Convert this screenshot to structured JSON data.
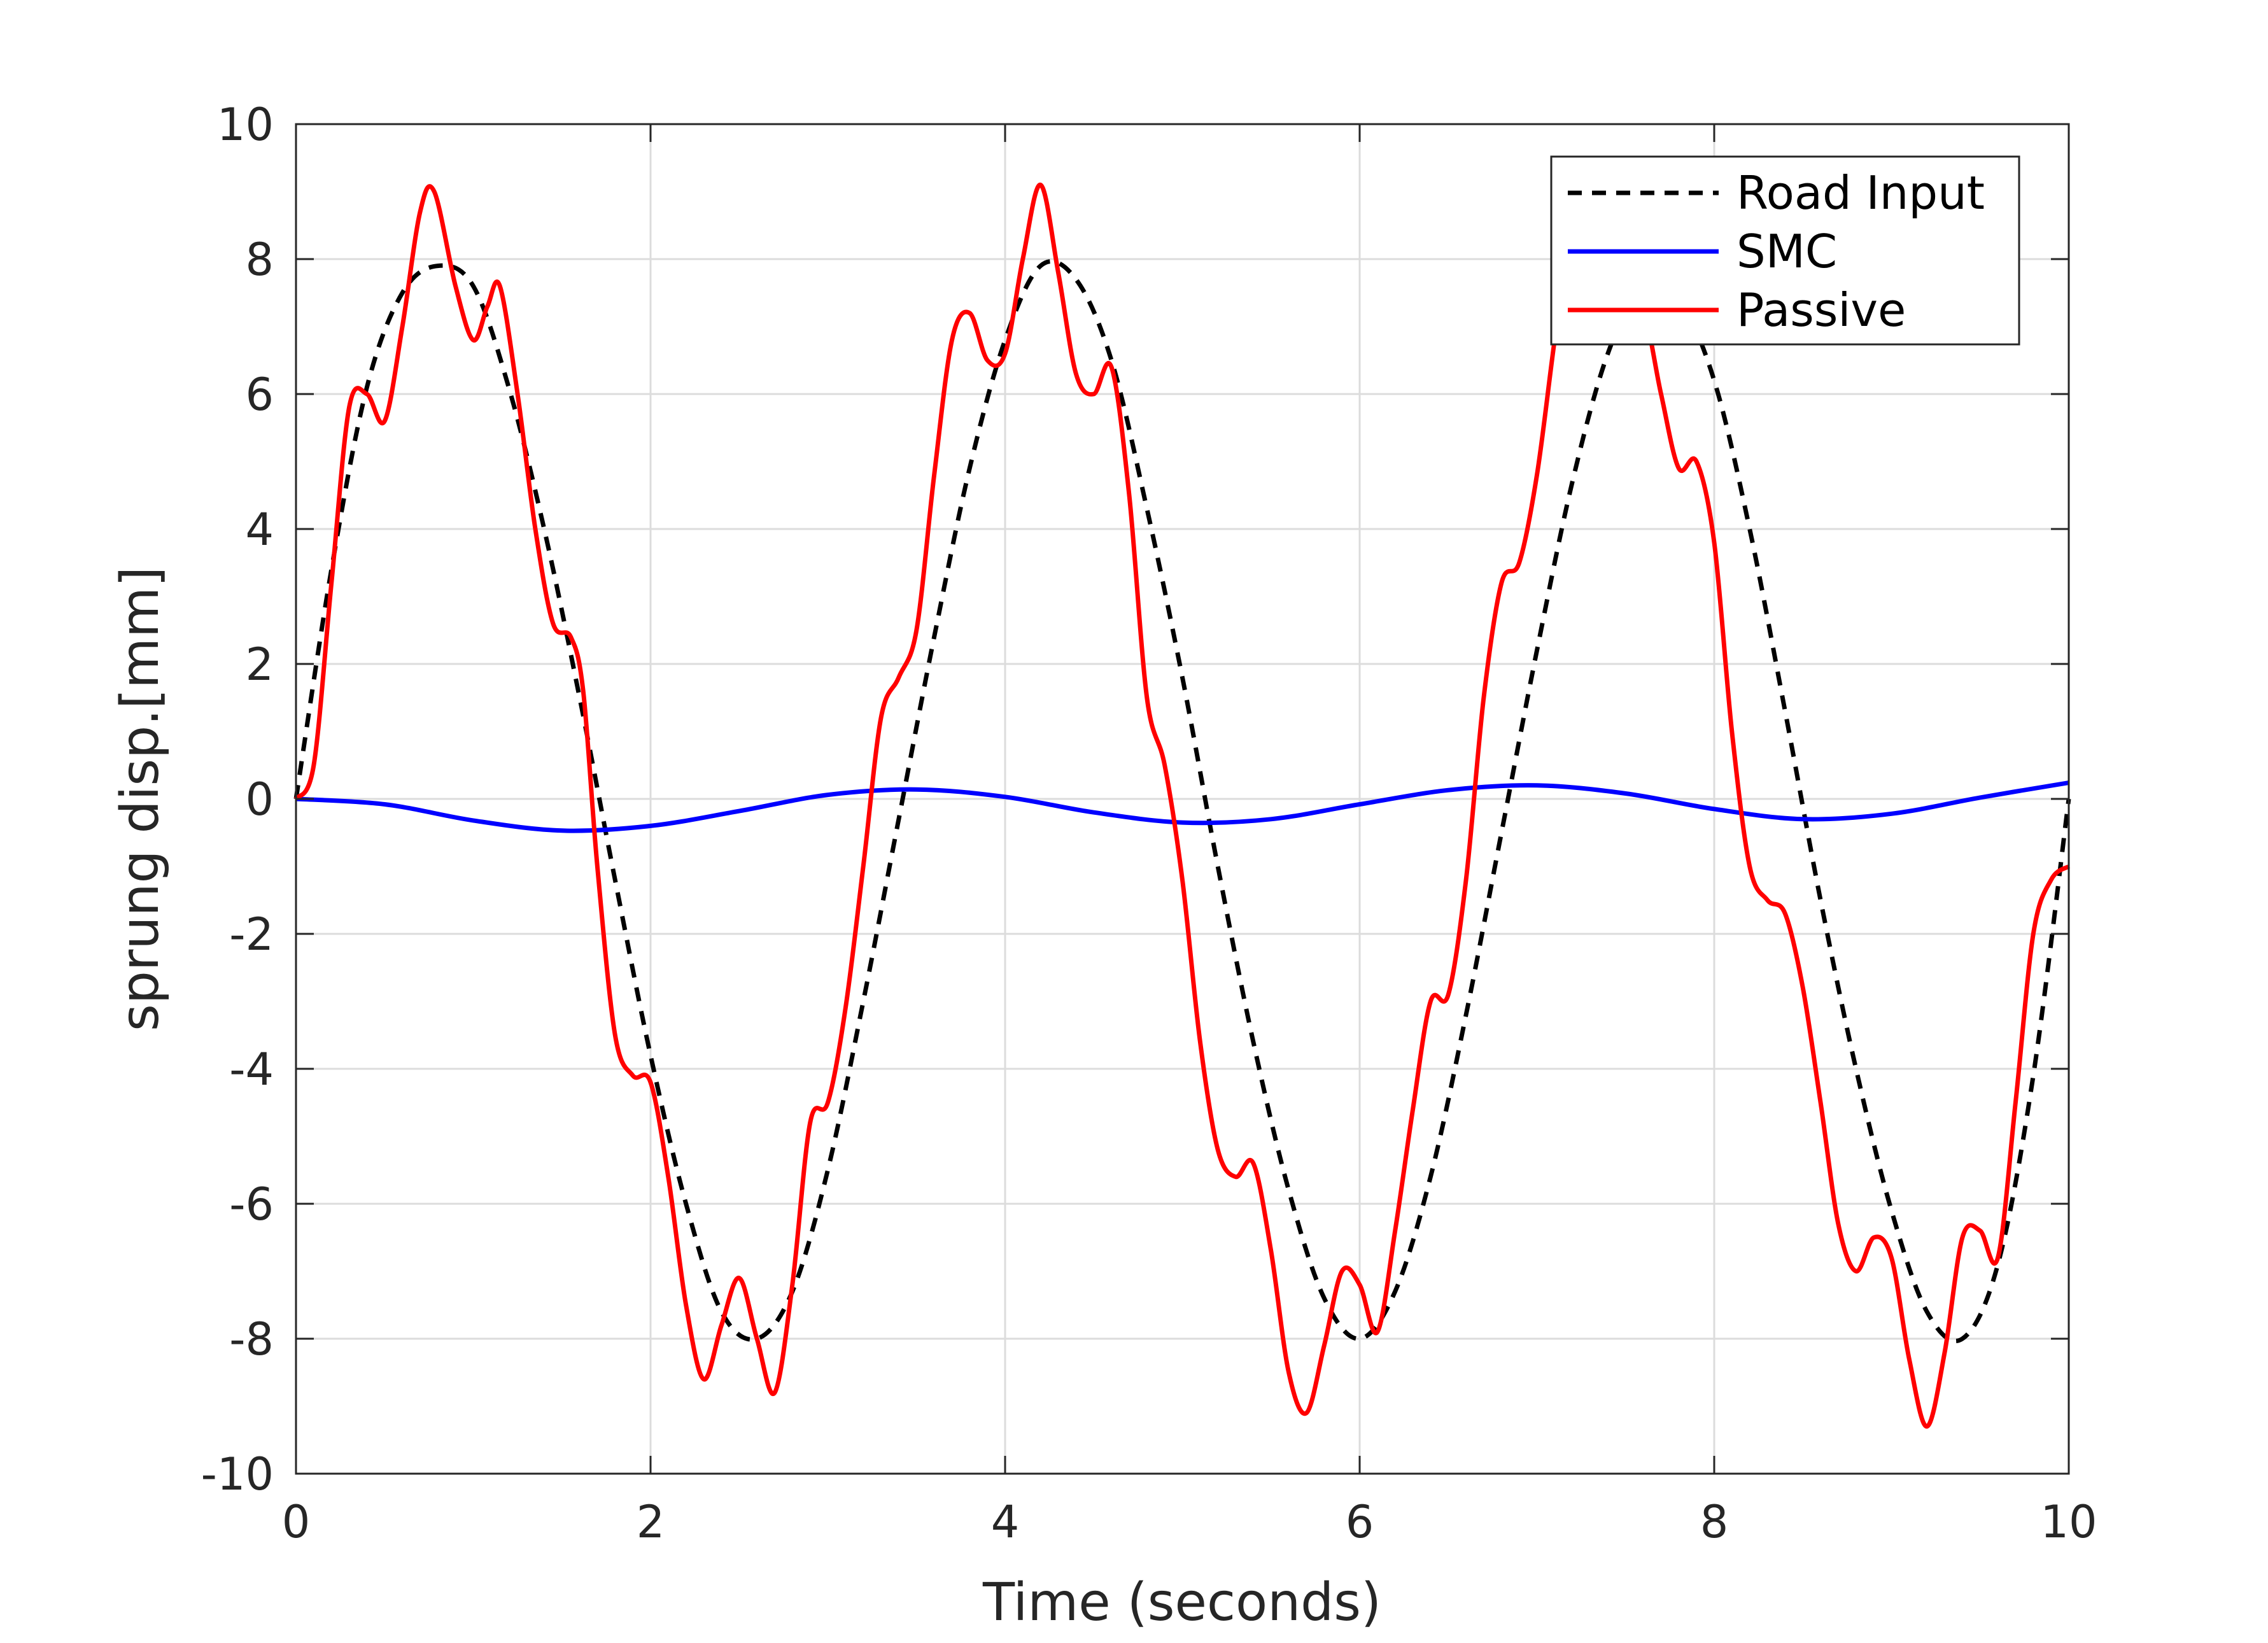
{
  "chart_data": {
    "type": "line",
    "title": "",
    "xlabel": "Time (seconds)",
    "ylabel": "sprung disp.[mm]",
    "xlim": [
      0,
      10
    ],
    "ylim": [
      -10,
      10
    ],
    "xticks": [
      0,
      2,
      4,
      6,
      8,
      10
    ],
    "yticks": [
      -10,
      -8,
      -6,
      -4,
      -2,
      0,
      2,
      4,
      6,
      8,
      10
    ],
    "grid": true,
    "legend_position": "top-right",
    "series": [
      {
        "name": "Road Input",
        "color": "#000000",
        "style": "dashed",
        "x": [
          0,
          0.2,
          0.4,
          0.6,
          0.8,
          1.0,
          1.2,
          1.4,
          1.6,
          1.8,
          2.0,
          2.2,
          2.4,
          2.6,
          2.8,
          3.0,
          3.2,
          3.4,
          3.6,
          3.8,
          4.0,
          4.2,
          4.4,
          4.6,
          4.8,
          5.0,
          5.2,
          5.4,
          5.6,
          5.8,
          6.0,
          6.2,
          6.4,
          6.6,
          6.8,
          7.0,
          7.2,
          7.4,
          7.6,
          7.8,
          8.0,
          8.2,
          8.4,
          8.6,
          8.8,
          9.0,
          9.2,
          9.4,
          9.6,
          9.8,
          10.0
        ],
        "y": [
          0,
          3.4,
          6.1,
          7.5,
          7.9,
          7.6,
          6.1,
          4.0,
          1.5,
          -1.2,
          -3.8,
          -6.0,
          -7.6,
          -8.0,
          -7.3,
          -5.5,
          -3.0,
          -0.3,
          2.4,
          4.9,
          6.8,
          7.9,
          7.7,
          6.5,
          4.3,
          1.8,
          -1.0,
          -3.6,
          -5.8,
          -7.4,
          -8.0,
          -7.3,
          -5.6,
          -3.2,
          -0.5,
          2.2,
          4.7,
          6.6,
          7.6,
          7.4,
          6.2,
          4.0,
          1.3,
          -1.5,
          -4.0,
          -6.1,
          -7.6,
          -8.0,
          -6.9,
          -4.1,
          0
        ]
      },
      {
        "name": "SMC",
        "color": "#0000ff",
        "style": "solid",
        "x": [
          0,
          0.5,
          1.0,
          1.5,
          2.0,
          2.5,
          3.0,
          3.5,
          4.0,
          4.5,
          5.0,
          5.5,
          6.0,
          6.5,
          7.0,
          7.5,
          8.0,
          8.5,
          9.0,
          9.5,
          10.0
        ],
        "y": [
          0,
          -0.08,
          -0.32,
          -0.47,
          -0.4,
          -0.18,
          0.06,
          0.14,
          0.03,
          -0.2,
          -0.35,
          -0.3,
          -0.08,
          0.13,
          0.2,
          0.08,
          -0.15,
          -0.3,
          -0.22,
          0.02,
          0.24
        ]
      },
      {
        "name": "Passive",
        "color": "#ff0000",
        "style": "solid",
        "x": [
          0,
          0.1,
          0.2,
          0.3,
          0.4,
          0.5,
          0.6,
          0.7,
          0.78,
          0.9,
          1.0,
          1.08,
          1.15,
          1.25,
          1.35,
          1.45,
          1.55,
          1.62,
          1.7,
          1.8,
          1.9,
          2.0,
          2.1,
          2.2,
          2.3,
          2.4,
          2.5,
          2.6,
          2.7,
          2.8,
          2.9,
          3.0,
          3.1,
          3.2,
          3.3,
          3.4,
          3.5,
          3.6,
          3.7,
          3.8,
          3.9,
          4.0,
          4.1,
          4.2,
          4.3,
          4.4,
          4.5,
          4.6,
          4.7,
          4.8,
          4.9,
          5.0,
          5.1,
          5.2,
          5.3,
          5.4,
          5.5,
          5.6,
          5.7,
          5.8,
          5.9,
          6.0,
          6.1,
          6.2,
          6.3,
          6.4,
          6.5,
          6.6,
          6.7,
          6.8,
          6.9,
          7.0,
          7.1,
          7.2,
          7.3,
          7.4,
          7.5,
          7.6,
          7.7,
          7.8,
          7.9,
          8.0,
          8.1,
          8.2,
          8.3,
          8.4,
          8.5,
          8.6,
          8.7,
          8.8,
          8.9,
          9.0,
          9.1,
          9.2,
          9.3,
          9.4,
          9.5,
          9.6,
          9.7,
          9.8,
          9.9,
          10.0
        ],
        "y": [
          0,
          0.5,
          3.2,
          5.8,
          6.0,
          5.6,
          7.0,
          8.7,
          9.0,
          7.6,
          6.8,
          7.3,
          7.6,
          6.0,
          4.0,
          2.6,
          2.4,
          1.6,
          -1.0,
          -3.5,
          -4.1,
          -4.2,
          -5.6,
          -7.5,
          -8.6,
          -7.8,
          -7.1,
          -8.0,
          -8.8,
          -7.2,
          -4.8,
          -4.5,
          -3.1,
          -1.0,
          1.2,
          1.8,
          2.5,
          4.8,
          6.8,
          7.2,
          6.5,
          6.6,
          8.0,
          9.1,
          7.8,
          6.3,
          6.0,
          6.4,
          4.5,
          1.5,
          0.5,
          -1.2,
          -3.6,
          -5.2,
          -5.6,
          -5.4,
          -6.7,
          -8.5,
          -9.1,
          -8.1,
          -7.0,
          -7.2,
          -7.9,
          -6.4,
          -4.6,
          -3.0,
          -2.9,
          -1.2,
          1.5,
          3.2,
          3.5,
          4.8,
          6.8,
          8.6,
          8.8,
          7.6,
          6.8,
          7.2,
          6.0,
          4.9,
          5.0,
          3.8,
          1.0,
          -1.0,
          -1.5,
          -1.7,
          -2.8,
          -4.5,
          -6.3,
          -7.0,
          -6.5,
          -6.8,
          -8.3,
          -9.3,
          -8.2,
          -6.5,
          -6.4,
          -6.8,
          -4.5,
          -2.0,
          -1.2,
          -1.0
        ]
      }
    ]
  }
}
